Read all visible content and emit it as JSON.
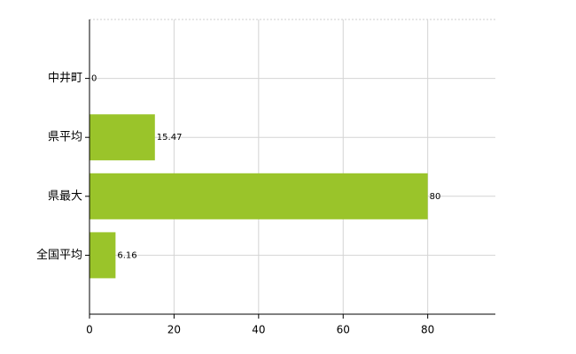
{
  "chart_data": {
    "type": "bar",
    "orientation": "horizontal",
    "categories": [
      "中井町",
      "県平均",
      "県最大",
      "全国平均"
    ],
    "values": [
      0,
      15.47,
      80,
      6.16
    ],
    "color": "#9ac42a",
    "xlim": [
      0,
      96
    ],
    "xticks": [
      0,
      20,
      40,
      60,
      80
    ],
    "grid": true
  }
}
